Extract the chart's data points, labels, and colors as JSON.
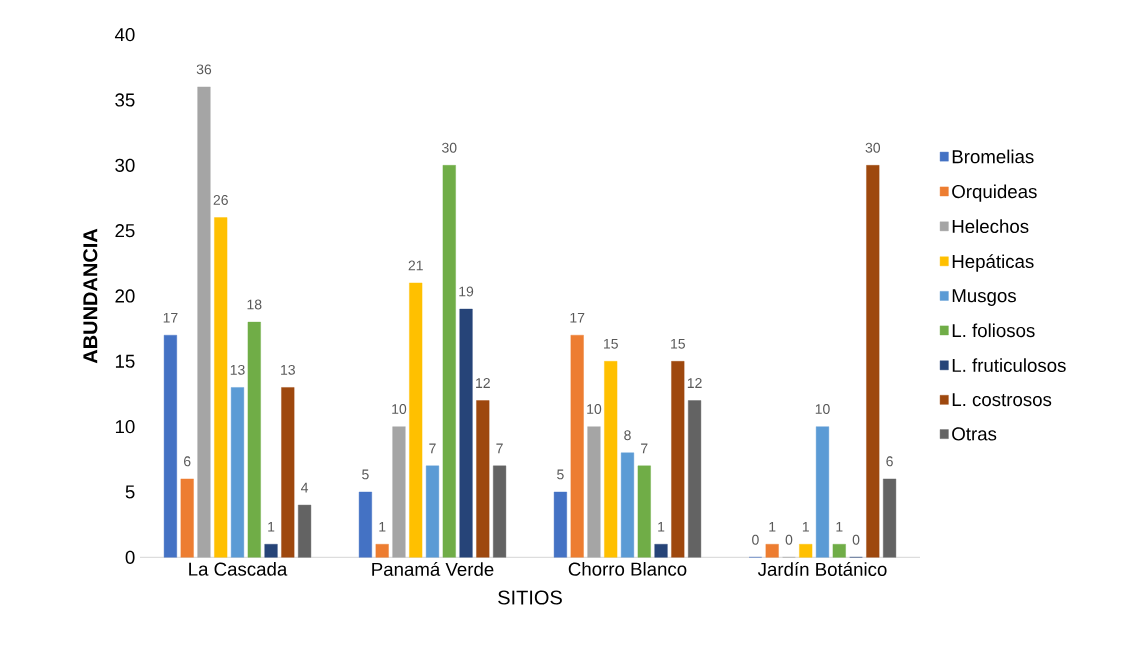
{
  "chart_data": {
    "type": "bar",
    "xlabel": "SITIOS",
    "ylabel": "ABUNDANCIA",
    "categories": [
      "La Cascada",
      "Panamá Verde",
      "Chorro Blanco",
      "Jardín Botánico"
    ],
    "series": [
      {
        "name": "Bromelias",
        "color": "#4472c4",
        "values": [
          17,
          5,
          5,
          0
        ]
      },
      {
        "name": "Orquideas",
        "color": "#ed7d31",
        "values": [
          6,
          1,
          17,
          1
        ]
      },
      {
        "name": "Helechos",
        "color": "#a5a5a5",
        "values": [
          36,
          10,
          10,
          0
        ]
      },
      {
        "name": "Hepáticas",
        "color": "#ffc000",
        "values": [
          26,
          21,
          15,
          1
        ]
      },
      {
        "name": "Musgos",
        "color": "#5b9bd5",
        "values": [
          13,
          7,
          8,
          10
        ]
      },
      {
        "name": "L. foliosos",
        "color": "#70ad47",
        "values": [
          18,
          30,
          7,
          1
        ]
      },
      {
        "name": "L. fruticulosos",
        "color": "#264478",
        "values": [
          1,
          19,
          1,
          0
        ]
      },
      {
        "name": "L. costrosos",
        "color": "#9e480e",
        "values": [
          13,
          12,
          15,
          30
        ]
      },
      {
        "name": "Otras",
        "color": "#636363",
        "values": [
          4,
          7,
          12,
          6
        ]
      }
    ],
    "ylim": [
      0,
      40
    ],
    "yticks": [
      0,
      5,
      10,
      15,
      20,
      25,
      30,
      35,
      40
    ],
    "data_labels": true,
    "legend": "right",
    "grid": false
  }
}
